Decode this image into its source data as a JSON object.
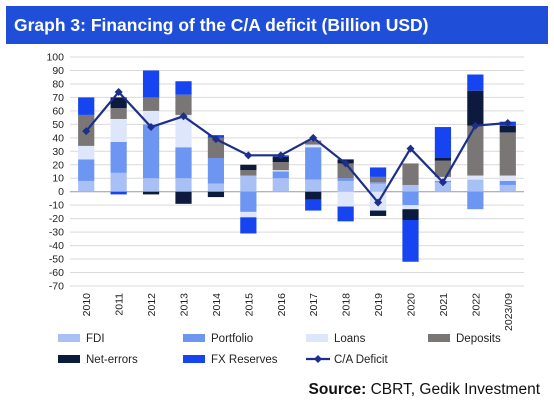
{
  "header": {
    "title": "Graph 3: Financing of the C/A deficit (Billion USD)"
  },
  "source": {
    "label": "Source:",
    "text": "CBRT, Gedik Investment"
  },
  "colors": {
    "FDI": "#a9c0f5",
    "Portfolio": "#6d95f2",
    "Loans": "#dde6fb",
    "Deposits": "#7a7676",
    "Net-errors": "#0c1a3d",
    "FX Reserves": "#1644f0",
    "C/A Deficit": "#1c2f8a",
    "title_bar": "#1f4fd8"
  },
  "chart_data": {
    "type": "bar",
    "stacked": true,
    "categories": [
      "2010",
      "2011",
      "2012",
      "2013",
      "2014",
      "2015",
      "2016",
      "2017",
      "2018",
      "2019",
      "2020",
      "2021",
      "2022",
      "2023/09"
    ],
    "ylim": [
      -70,
      100
    ],
    "yticks": [
      100,
      90,
      80,
      70,
      60,
      50,
      40,
      30,
      20,
      10,
      0,
      -10,
      -20,
      -30,
      -40,
      -50,
      -60,
      -70
    ],
    "grid": true,
    "legend_position": "bottom",
    "series": [
      {
        "name": "FDI",
        "values": [
          8,
          14,
          10,
          10,
          6,
          12,
          10,
          9,
          8,
          6,
          5,
          7,
          9,
          5
        ]
      },
      {
        "name": "Portfolio",
        "values": [
          16,
          23,
          40,
          23,
          19,
          -15,
          5,
          24,
          2,
          1,
          -10,
          1,
          -13,
          3
        ]
      },
      {
        "name": "Loans",
        "values": [
          10,
          17,
          10,
          24,
          0,
          -4,
          1,
          2,
          -11,
          -14,
          -3,
          3,
          3,
          4
        ]
      },
      {
        "name": "Deposits",
        "values": [
          23,
          8,
          10,
          15,
          15,
          4,
          6,
          3,
          11,
          4,
          16,
          12,
          37,
          32
        ]
      },
      {
        "name": "Net-errors",
        "values": [
          0,
          8,
          -2,
          -9,
          -4,
          4,
          4,
          -6,
          3,
          -4,
          -8,
          2,
          26,
          5
        ]
      },
      {
        "name": "FX Reserves",
        "values": [
          13,
          -2,
          20,
          10,
          2,
          -12,
          1,
          -8,
          -11,
          7,
          -31,
          23,
          12,
          3
        ]
      },
      {
        "name": "C/A Deficit",
        "type": "line",
        "values": [
          45,
          74,
          48,
          56,
          39,
          27,
          27,
          40,
          21,
          -8,
          32,
          7,
          49,
          51
        ]
      }
    ]
  }
}
